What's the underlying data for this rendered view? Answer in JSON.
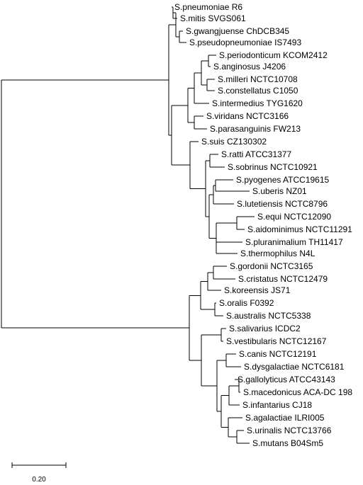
{
  "tree": {
    "leaves": [
      {
        "id": 1,
        "label": "S.pneumoniae R6"
      },
      {
        "id": 2,
        "label": "S.mitis SVGS061"
      },
      {
        "id": 3,
        "label": "S.gwangjuense ChDCB345"
      },
      {
        "id": 4,
        "label": "S.pseudopneumoniae IS7493"
      },
      {
        "id": 5,
        "label": "S.periodonticum KCOM2412"
      },
      {
        "id": 6,
        "label": "S.anginosus J4206"
      },
      {
        "id": 7,
        "label": "S.milleri NCTC10708"
      },
      {
        "id": 8,
        "label": "S.constellatus C1050"
      },
      {
        "id": 9,
        "label": "S.intermedius TYG1620"
      },
      {
        "id": 10,
        "label": "S.viridans NCTC3166"
      },
      {
        "id": 11,
        "label": "S.parasanguinis FW213"
      },
      {
        "id": 12,
        "label": "S.suis CZ130302"
      },
      {
        "id": 13,
        "label": "S.ratti ATCC31377"
      },
      {
        "id": 14,
        "label": "S.sobrinus NCTC10921"
      },
      {
        "id": 15,
        "label": "S.pyogenes ATCC19615"
      },
      {
        "id": 16,
        "label": "S.uberis NZ01"
      },
      {
        "id": 17,
        "label": "S.lutetiensis NCTC8796"
      },
      {
        "id": 18,
        "label": "S.equi NCTC12090"
      },
      {
        "id": 19,
        "label": "S.aidominimus NCTC11291"
      },
      {
        "id": 20,
        "label": "S.pluranimalium TH11417"
      },
      {
        "id": 21,
        "label": "S.thermophilus N4L"
      },
      {
        "id": 22,
        "label": "S.gordonii NCTC3165"
      },
      {
        "id": 23,
        "label": "S.cristatus NCTC12479"
      },
      {
        "id": 24,
        "label": "S.koreensis JS71"
      },
      {
        "id": 25,
        "label": "S.oralis F0392"
      },
      {
        "id": 26,
        "label": "S.australis NCTC5338"
      },
      {
        "id": 27,
        "label": "S.salivarius ICDC2"
      },
      {
        "id": 28,
        "label": "S.vestibularis NCTC12167"
      },
      {
        "id": 29,
        "label": "S.canis NCTC12191"
      },
      {
        "id": 30,
        "label": "S.dysgalactiae NCTC6181"
      },
      {
        "id": 31,
        "label": "S.gallolyticus ATCC43143"
      },
      {
        "id": 32,
        "label": "S.macedonicus ACA-DC 198"
      },
      {
        "id": 33,
        "label": "S.infantarius CJ18"
      },
      {
        "id": 34,
        "label": "S.agalactiae ILRI005"
      },
      {
        "id": 35,
        "label": "S.urinalis NCTC13766"
      },
      {
        "id": 36,
        "label": "S.mutans B04Sm5"
      }
    ]
  },
  "scale_bar": {
    "value": 0.2,
    "label": "0.20"
  }
}
